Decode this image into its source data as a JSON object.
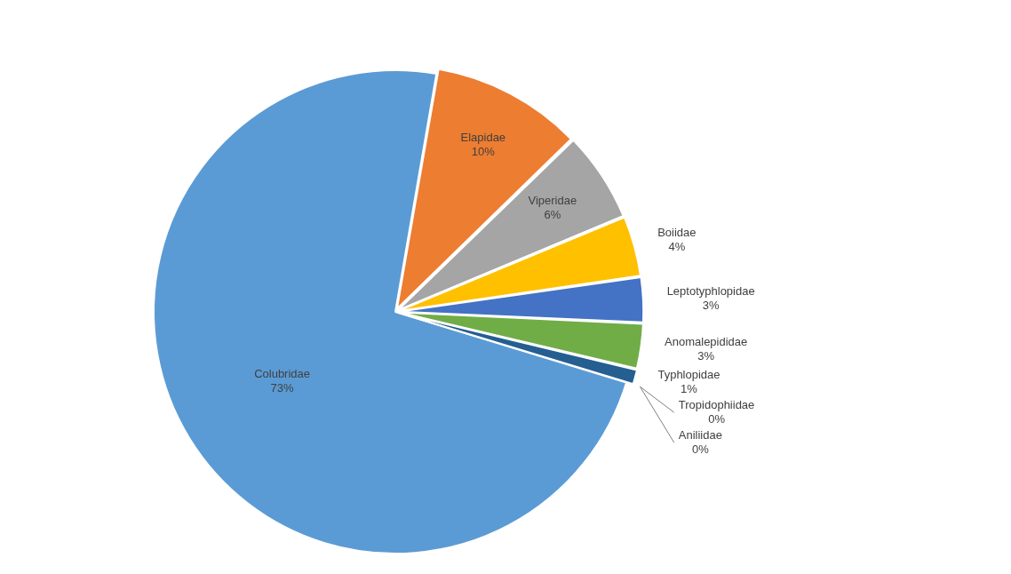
{
  "chart_data": {
    "type": "pie",
    "categories": [
      "Colubridae",
      "Elapidae",
      "Viperidae",
      "Boiidae",
      "Leptotyphlopidae",
      "Anomalepididae",
      "Typhlopidae",
      "Tropidophiidae",
      "Aniliidae"
    ],
    "values": [
      73,
      10,
      6,
      4,
      3,
      3,
      1,
      0,
      0
    ],
    "value_labels": [
      "73%",
      "10%",
      "6%",
      "4%",
      "3%",
      "3%",
      "1%",
      "0%",
      "0%"
    ],
    "colors": [
      "#5b9bd5",
      "#ed7d31",
      "#a5a5a5",
      "#ffc000",
      "#4472c4",
      "#70ad47",
      "#255e91",
      "#9e480e",
      "#636363"
    ],
    "data_labels": true
  }
}
